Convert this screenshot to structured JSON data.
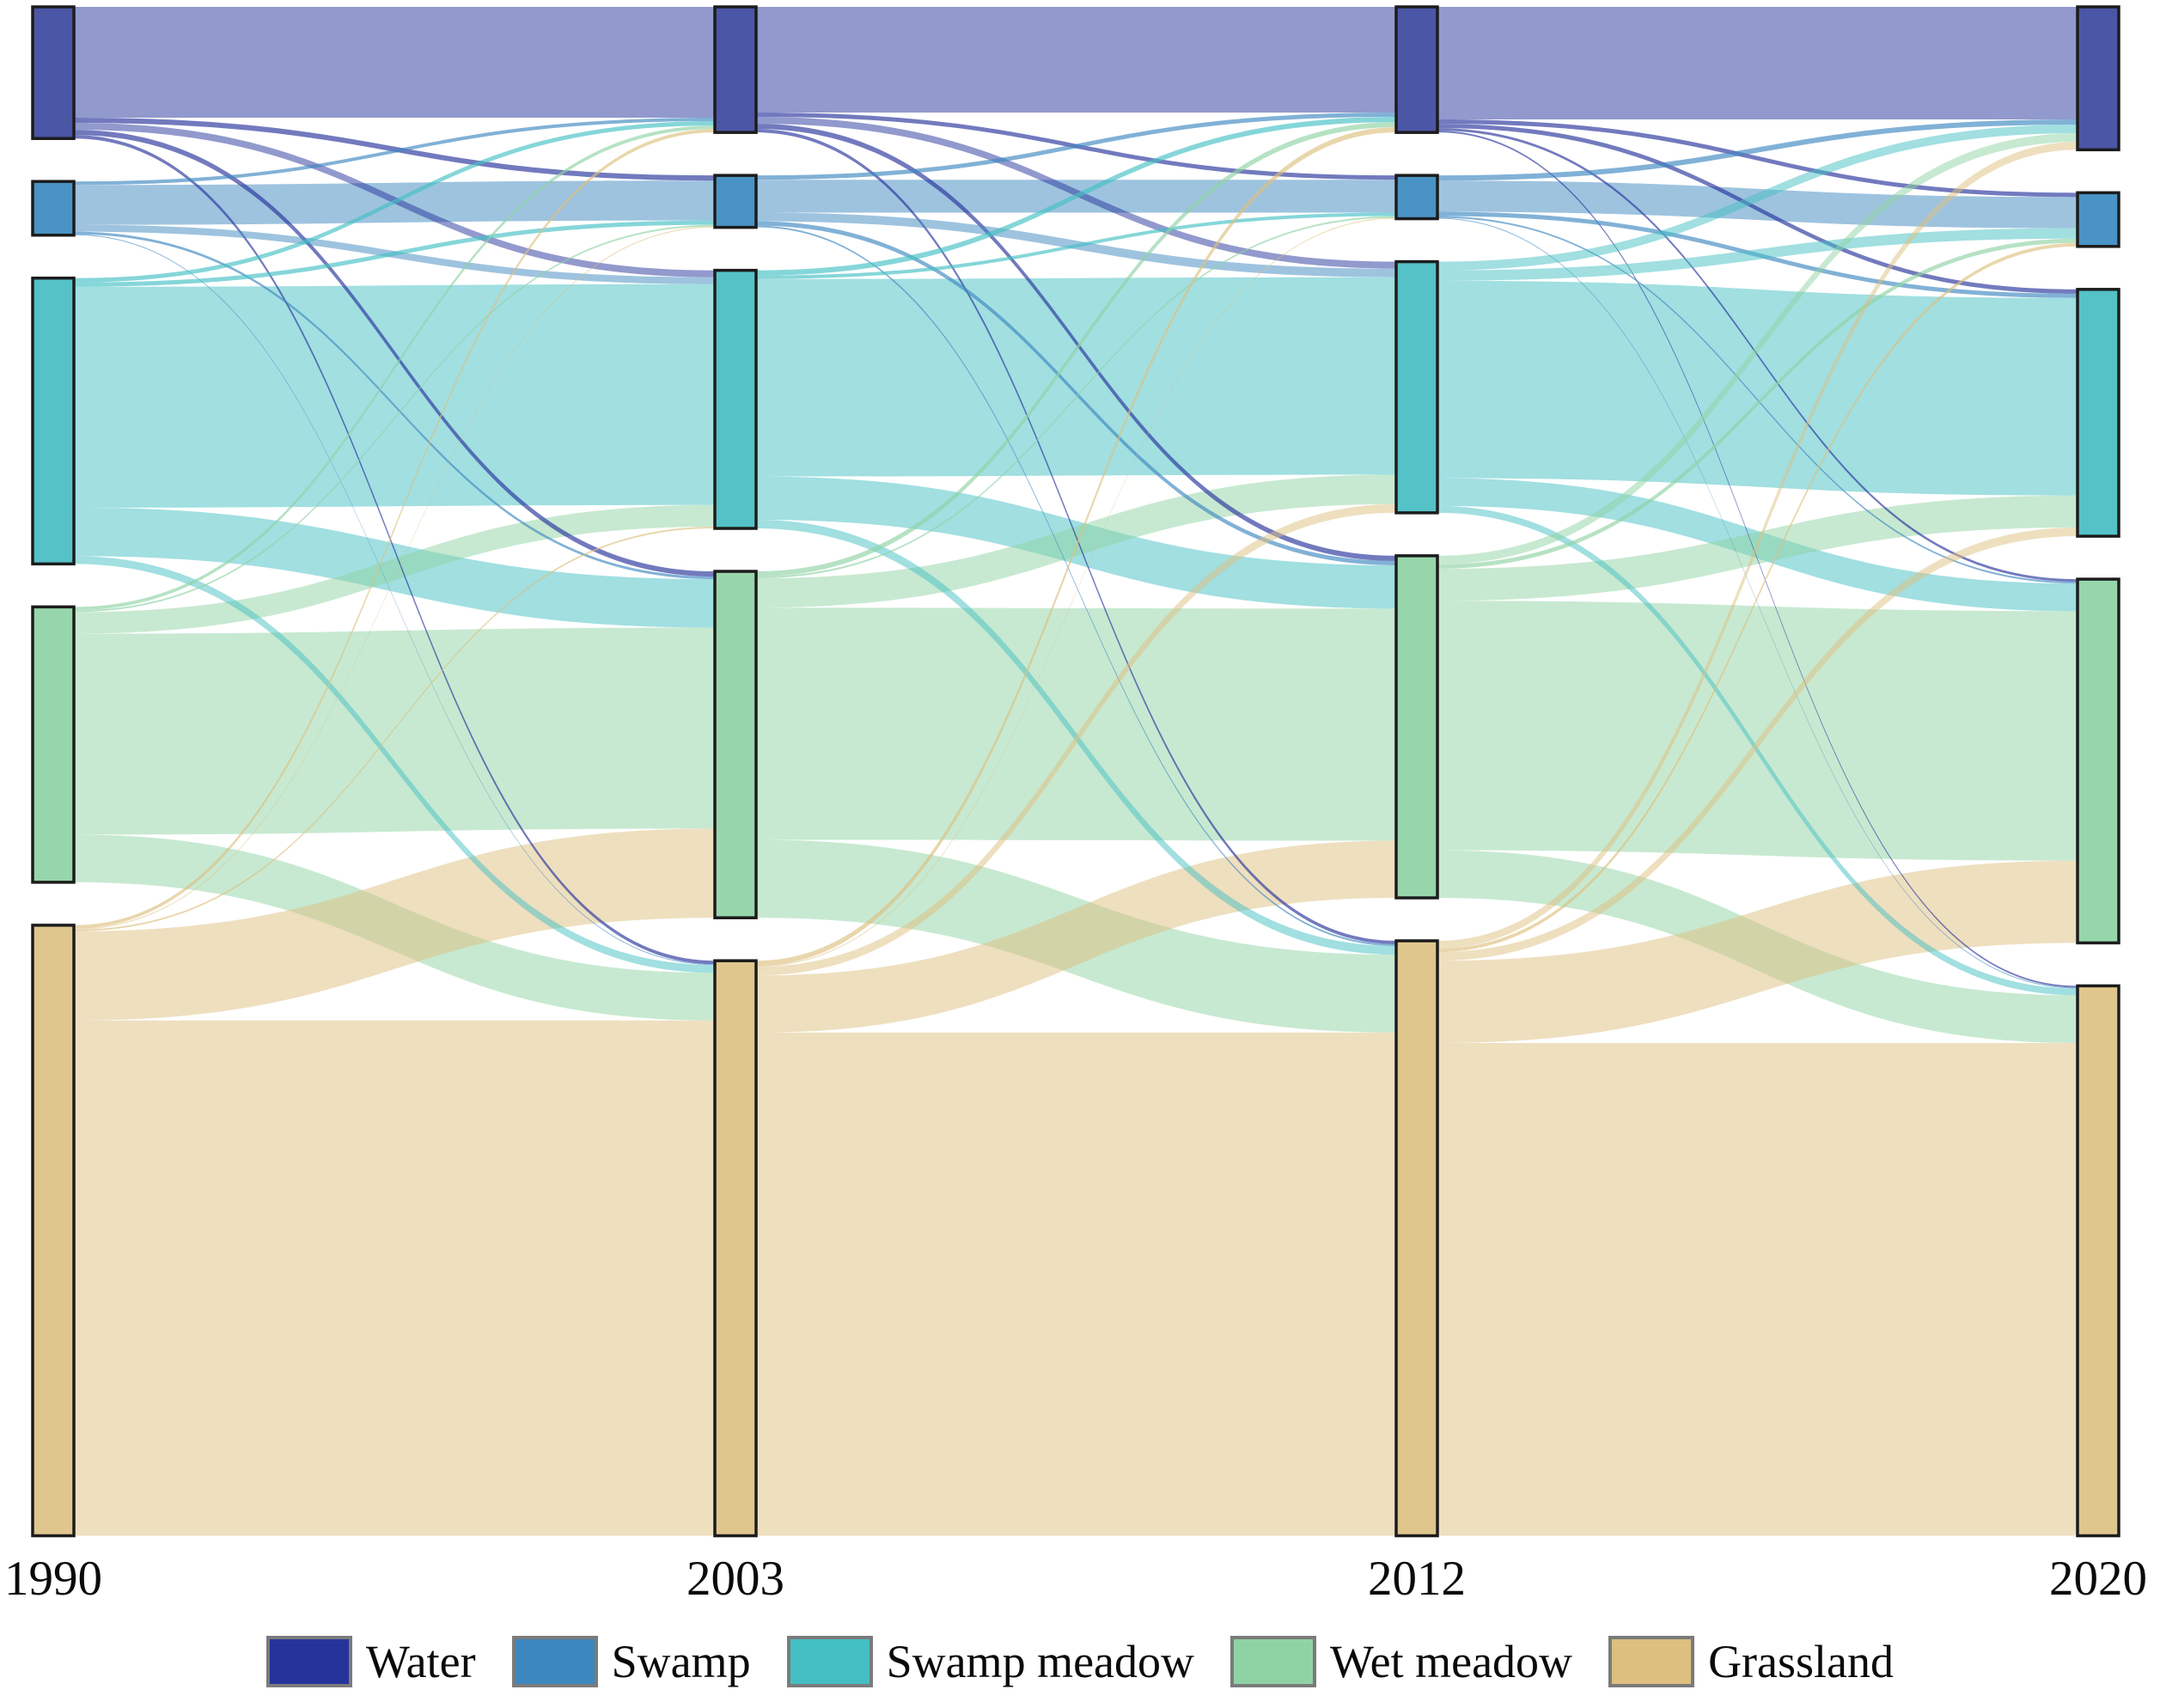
{
  "chart_data": {
    "type": "sankey",
    "title": "",
    "xlabel": "",
    "ylabel": "",
    "orientation": "left-to-right",
    "axis_tick_labels": [
      "1990",
      "2003",
      "2012",
      "2020"
    ],
    "legend_position": "bottom",
    "classes": [
      {
        "name": "Water",
        "legend_color": "#26339B",
        "node_color": "#4C56A7"
      },
      {
        "name": "Swamp",
        "legend_color": "#3D87C0",
        "node_color": "#4A93C5"
      },
      {
        "name": "Swamp meadow",
        "legend_color": "#44C0C4",
        "node_color": "#55C2C7"
      },
      {
        "name": "Wet meadow",
        "legend_color": "#8FD3A4",
        "node_color": "#97D6AB"
      },
      {
        "name": "Grassland",
        "legend_color": "#DDC07F",
        "node_color": "#DFC68D"
      }
    ],
    "node_values_area_units": {
      "1990": [
        152,
        62,
        330,
        318,
        705
      ],
      "2003": [
        145,
        60,
        298,
        400,
        664
      ],
      "2012": [
        145,
        50,
        290,
        395,
        687
      ],
      "2020": [
        165,
        62,
        285,
        420,
        635
      ]
    },
    "transitions": [
      {
        "from": "1990",
        "to": "2003",
        "matrix_rows_source_cols_target": [
          [
            128,
            6,
            8,
            6,
            4
          ],
          [
            4,
            46,
            8,
            3,
            1
          ],
          [
            5,
            5,
            255,
            56,
            9
          ],
          [
            4,
            2,
            25,
            232,
            55
          ],
          [
            4,
            1,
            2,
            103,
            595
          ]
        ]
      },
      {
        "from": "2003",
        "to": "2012",
        "matrix_rows_source_cols_target": [
          [
            122,
            5,
            8,
            6,
            4
          ],
          [
            5,
            38,
            10,
            5,
            2
          ],
          [
            6,
            4,
            228,
            50,
            10
          ],
          [
            6,
            2,
            34,
            268,
            90
          ],
          [
            6,
            1,
            10,
            66,
            581
          ]
        ]
      },
      {
        "from": "2012",
        "to": "2020",
        "matrix_rows_source_cols_target": [
          [
            130,
            5,
            5,
            3,
            2
          ],
          [
            6,
            36,
            5,
            2,
            1
          ],
          [
            10,
            12,
            228,
            32,
            8
          ],
          [
            10,
            5,
            37,
            288,
            55
          ],
          [
            9,
            4,
            10,
            95,
            569
          ]
        ]
      }
    ],
    "style": {
      "node_stroke_color": "#1c1c1c",
      "legend_swatch_border_color": "#7b7b7b",
      "flow_opacity_major": 0.5,
      "flow_opacity_minor": 0.65,
      "text_color": "#0a0a0a"
    }
  }
}
